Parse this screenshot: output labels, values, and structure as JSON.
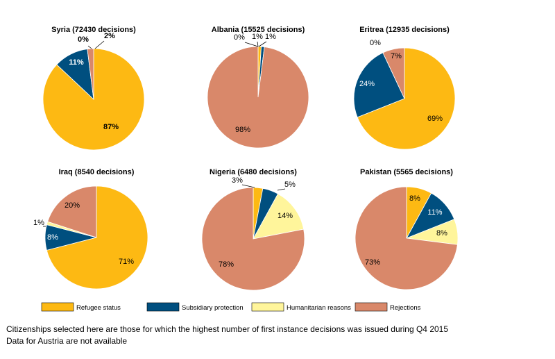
{
  "colors": {
    "Refugee status": "#fdb913",
    "Subsidiary protection": "#004f7f",
    "Humanitarian reasons": "#fff59b",
    "Rejections": "#d9886a"
  },
  "legend": [
    "Refugee status",
    "Subsidiary protection",
    "Humanitarian reasons",
    "Rejections"
  ],
  "chart_data": [
    {
      "type": "pie",
      "title": "Syria (72430 decisions)",
      "categories": [
        "Refugee status",
        "Subsidiary protection",
        "Humanitarian reasons",
        "Rejections"
      ],
      "values": [
        87,
        11,
        0,
        2
      ],
      "labels": [
        "87%",
        "11%",
        "0%",
        "2%"
      ]
    },
    {
      "type": "pie",
      "title": "Albania (15525 decisions)",
      "categories": [
        "Refugee status",
        "Subsidiary protection",
        "Humanitarian reasons",
        "Rejections"
      ],
      "values": [
        1,
        1,
        0,
        98
      ],
      "labels": [
        "1%",
        "1%",
        "0%",
        "98%"
      ]
    },
    {
      "type": "pie",
      "title": "Eritrea (12935 decisions)",
      "categories": [
        "Refugee status",
        "Subsidiary protection",
        "Humanitarian reasons",
        "Rejections"
      ],
      "values": [
        69,
        24,
        0,
        7
      ],
      "labels": [
        "69%",
        "24%",
        "0%",
        "7%"
      ]
    },
    {
      "type": "pie",
      "title": "Iraq (8540 decisions)",
      "categories": [
        "Refugee status",
        "Subsidiary protection",
        "Humanitarian reasons",
        "Rejections"
      ],
      "values": [
        71,
        8,
        1,
        20
      ],
      "labels": [
        "71%",
        "8%",
        "1%",
        "20%"
      ]
    },
    {
      "type": "pie",
      "title": "Nigeria (6480 decisions)",
      "categories": [
        "Refugee status",
        "Subsidiary protection",
        "Humanitarian reasons",
        "Rejections"
      ],
      "values": [
        3,
        5,
        14,
        78
      ],
      "labels": [
        "3%",
        "5%",
        "14%",
        "78%"
      ]
    },
    {
      "type": "pie",
      "title": "Pakistan (5565 decisions)",
      "categories": [
        "Refugee status",
        "Subsidiary protection",
        "Humanitarian reasons",
        "Rejections"
      ],
      "values": [
        8,
        11,
        8,
        73
      ],
      "labels": [
        "8%",
        "11%",
        "8%",
        "73%"
      ]
    }
  ],
  "footnotes": [
    "Citizenships selected here are those for which the highest number of first instance decisions was issued during Q4 2015",
    "Data for Austria are not available"
  ]
}
